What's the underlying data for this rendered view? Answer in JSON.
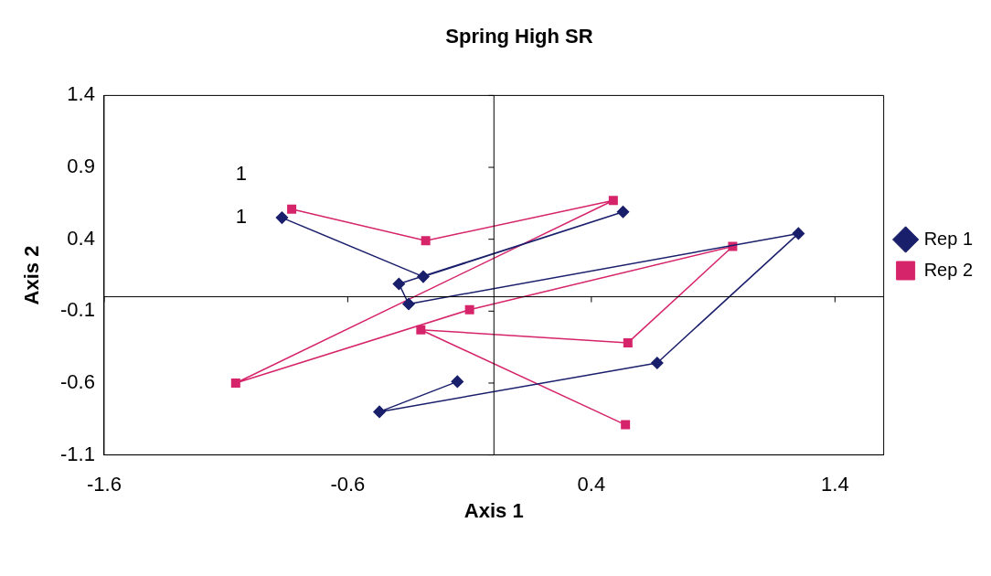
{
  "chart_data": {
    "type": "line",
    "title": "Spring High SR",
    "xlabel": "Axis 1",
    "ylabel": "Axis 2",
    "xlim": [
      -1.6,
      1.6
    ],
    "xticks": [
      -1.6,
      -0.6,
      0.4,
      1.4
    ],
    "ylim": [
      -1.1,
      1.4
    ],
    "yticks": [
      -1.1,
      -0.6,
      -0.1,
      0.4,
      0.9,
      1.4
    ],
    "grid": false,
    "legend": "right",
    "line_style": "solid",
    "series": [
      {
        "name": "Rep 1",
        "color": "#1a1f6b",
        "marker": "diamond",
        "x": [
          -0.87,
          -0.29,
          0.53,
          -0.39,
          -0.35,
          1.25,
          0.67,
          -0.47,
          -0.15
        ],
        "values": [
          0.55,
          0.14,
          0.59,
          0.09,
          -0.05,
          0.44,
          -0.46,
          -0.8,
          -0.59
        ]
      },
      {
        "name": "Rep 2",
        "color": "#d6246a",
        "marker": "square",
        "x": [
          -0.83,
          -0.28,
          0.49,
          -1.06,
          -0.1,
          0.98,
          0.55,
          -0.3,
          0.54
        ],
        "values": [
          0.61,
          0.39,
          0.67,
          -0.6,
          -0.09,
          0.35,
          -0.32,
          -0.23,
          -0.89
        ]
      }
    ],
    "annotations": [
      "1",
      "1"
    ]
  }
}
